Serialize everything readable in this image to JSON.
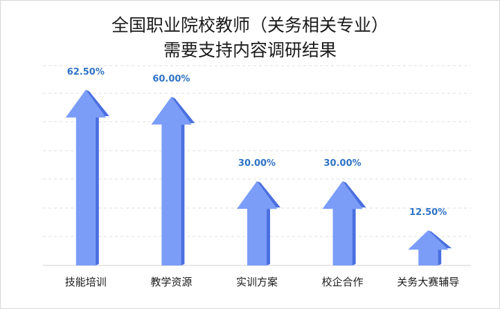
{
  "chart_data": {
    "type": "bar",
    "title_line1": "全国职业院校教师（关务相关专业）",
    "title_line2": "需要支持内容调研结果",
    "categories": [
      "技能培训",
      "教学资源",
      "实训方案",
      "校企合作",
      "关务大赛辅导"
    ],
    "values": [
      62.5,
      60.0,
      30.0,
      30.0,
      12.5
    ],
    "value_labels": [
      "62.50%",
      "60.00%",
      "30.00%",
      "30.00%",
      "12.50%"
    ],
    "ylim": [
      0,
      62.5
    ],
    "grid": true,
    "legend": "none",
    "xlabel": "",
    "ylabel": "",
    "colors": {
      "arrow_fill": "#7b9df8",
      "arrow_side": "#4a6fe0",
      "label": "#2e73c4",
      "grid": "#dcdcdc"
    }
  }
}
